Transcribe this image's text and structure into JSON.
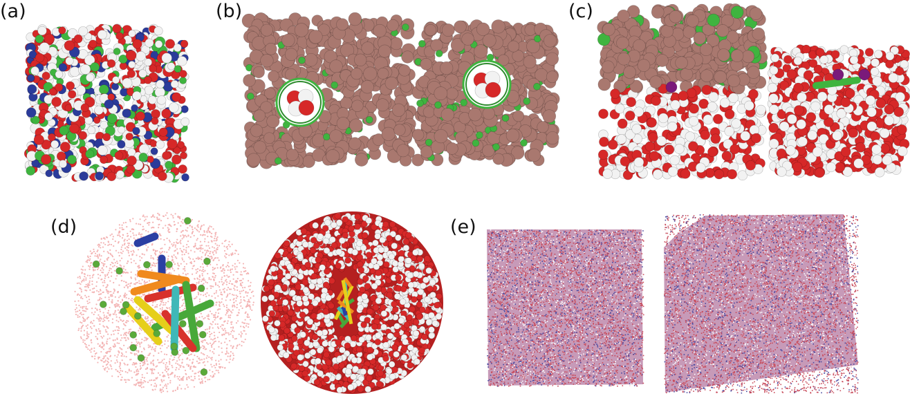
{
  "panels": [
    {
      "id": "a",
      "label": "(a)"
    },
    {
      "id": "b",
      "label": "(b)"
    },
    {
      "id": "c",
      "label": "(c)"
    },
    {
      "id": "d",
      "label": "(d)"
    },
    {
      "id": "e",
      "label": "(e)"
    }
  ],
  "colors": {
    "oxygen": "#d62828",
    "hydrogen": "#f2f2f2",
    "nitrogen": "#2b3b9a",
    "carbon": "#3fb43f",
    "clathrate_sphere": "#a9786f",
    "helix_blue": "#2b3fa3",
    "helix_orange": "#f08a1e",
    "helix_yellow": "#e6cf1a",
    "helix_green": "#48a83a",
    "helix_red": "#d8322c",
    "helix_cyan": "#3fb8b8",
    "ion_green": "#5aaa3a",
    "potassium_purple": "#7a1a7a",
    "mesh_red": "#c84a5a",
    "mesh_blue": "#4a4aa0"
  }
}
